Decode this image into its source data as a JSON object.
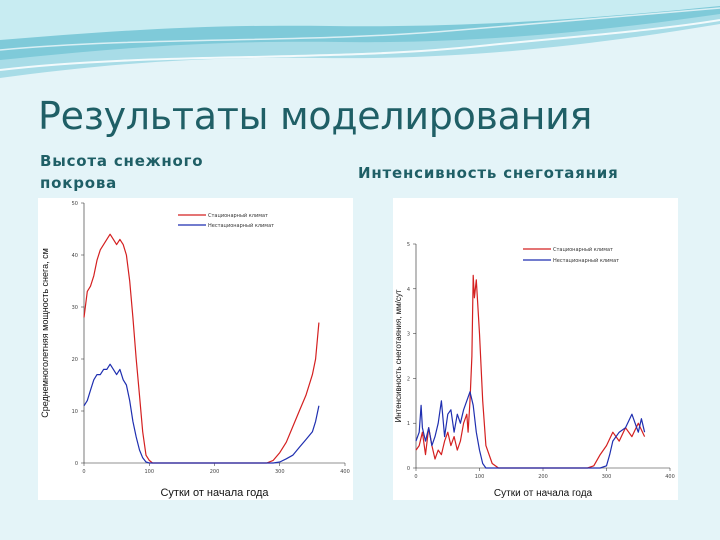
{
  "slide": {
    "title": "Результаты моделирования",
    "left_subtitle": "Высота снежного покрова",
    "right_subtitle": "Интенсивность снеготаяния"
  },
  "colors": {
    "background": "#e4f4f8",
    "title": "#1f5f66",
    "stationary_series": "#d42020",
    "nonstationary_series": "#1f2fb0"
  },
  "chart_data": [
    {
      "type": "line",
      "title": "",
      "xlabel": "Сутки от начала года",
      "ylabel": "Среднемноголетняя мощность снега, см",
      "xlim": [
        0,
        400
      ],
      "ylim": [
        0,
        50
      ],
      "xticks": [
        "0",
        "100",
        "200",
        "300",
        "400"
      ],
      "yticks": [
        "0",
        "10",
        "20",
        "30",
        "40",
        "50"
      ],
      "grid": false,
      "legend": "top-right",
      "series": [
        {
          "name": "Стационарный климат",
          "color": "#d42020",
          "x": [
            0,
            5,
            10,
            15,
            20,
            25,
            30,
            35,
            40,
            45,
            50,
            55,
            60,
            65,
            70,
            75,
            80,
            85,
            90,
            95,
            100,
            105,
            110,
            115,
            120,
            130,
            150,
            180,
            200,
            250,
            280,
            290,
            300,
            310,
            320,
            330,
            340,
            350,
            355,
            360
          ],
          "y": [
            28,
            33,
            34,
            36,
            39,
            41,
            42,
            43,
            44,
            43,
            42,
            43,
            42,
            40,
            35,
            28,
            20,
            13,
            6,
            1.5,
            0.5,
            0,
            0,
            0,
            0,
            0,
            0,
            0,
            0,
            0,
            0,
            0.5,
            2,
            4,
            7,
            10,
            13,
            17,
            20,
            27
          ]
        },
        {
          "name": "Нестационарный климат",
          "color": "#1f2fb0",
          "x": [
            0,
            5,
            10,
            15,
            20,
            25,
            30,
            35,
            40,
            45,
            50,
            55,
            60,
            65,
            70,
            75,
            80,
            85,
            90,
            95,
            100,
            105,
            110,
            120,
            150,
            200,
            250,
            290,
            300,
            310,
            320,
            330,
            340,
            350,
            355,
            360
          ],
          "y": [
            11,
            12,
            14,
            16,
            17,
            17,
            18,
            18,
            19,
            18,
            17,
            18,
            16,
            15,
            12,
            8,
            5,
            2.5,
            1,
            0.2,
            0,
            0,
            0,
            0,
            0,
            0,
            0,
            0,
            0.2,
            0.8,
            1.5,
            3,
            4.5,
            6,
            8,
            11
          ]
        }
      ]
    },
    {
      "type": "line",
      "title": "",
      "xlabel": "Сутки от начала года",
      "ylabel": "Интенсивность снеготаяния, мм/сут",
      "xlim": [
        0,
        400
      ],
      "ylim": [
        0,
        5
      ],
      "xticks": [
        "0",
        "100",
        "200",
        "300",
        "400"
      ],
      "yticks": [
        "0",
        "1",
        "2",
        "3",
        "4",
        "5"
      ],
      "grid": false,
      "legend": "top-right",
      "series": [
        {
          "name": "Стационарный климат",
          "color": "#d42020",
          "x": [
            0,
            5,
            10,
            15,
            20,
            25,
            30,
            35,
            40,
            45,
            50,
            55,
            60,
            65,
            70,
            75,
            80,
            82,
            85,
            88,
            90,
            92,
            95,
            100,
            105,
            110,
            120,
            130,
            150,
            200,
            250,
            270,
            280,
            290,
            300,
            310,
            320,
            330,
            340,
            350,
            360
          ],
          "y": [
            0.4,
            0.5,
            0.8,
            0.3,
            0.9,
            0.5,
            0.2,
            0.4,
            0.3,
            0.6,
            0.8,
            0.5,
            0.7,
            0.4,
            0.6,
            1.0,
            1.2,
            0.8,
            1.5,
            2.5,
            4.3,
            3.8,
            4.2,
            3.0,
            1.5,
            0.5,
            0.1,
            0,
            0,
            0,
            0,
            0,
            0.05,
            0.3,
            0.5,
            0.8,
            0.6,
            0.9,
            0.7,
            1.0,
            0.7
          ]
        },
        {
          "name": "Нестационарный климат",
          "color": "#1f2fb0",
          "x": [
            0,
            5,
            8,
            10,
            15,
            20,
            25,
            30,
            35,
            40,
            45,
            50,
            55,
            60,
            65,
            70,
            75,
            80,
            85,
            90,
            95,
            100,
            105,
            110,
            120,
            150,
            200,
            250,
            290,
            300,
            305,
            310,
            320,
            330,
            340,
            345,
            350,
            355,
            360
          ],
          "y": [
            0.6,
            0.8,
            1.4,
            0.9,
            0.6,
            0.9,
            0.5,
            0.7,
            1.0,
            1.5,
            0.7,
            1.2,
            1.3,
            0.8,
            1.2,
            1.0,
            1.3,
            1.5,
            1.7,
            1.4,
            0.8,
            0.4,
            0.1,
            0,
            0,
            0,
            0,
            0,
            0,
            0.05,
            0.3,
            0.6,
            0.8,
            0.9,
            1.2,
            1.0,
            0.8,
            1.1,
            0.8
          ]
        }
      ]
    }
  ]
}
